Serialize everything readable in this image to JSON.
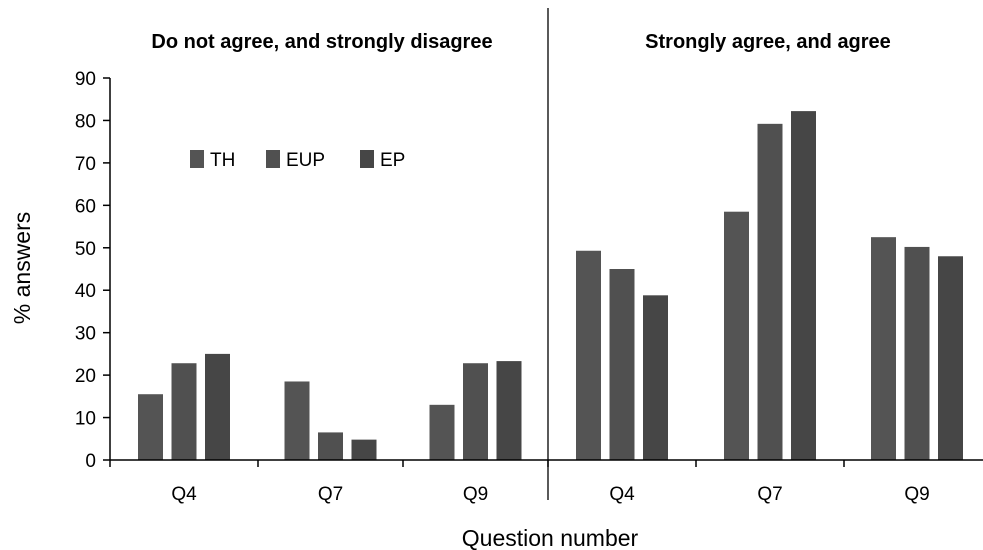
{
  "chart_data": {
    "type": "bar",
    "xlabel": "Question number",
    "ylabel": "% answers",
    "ylim": [
      0,
      90
    ],
    "yticks": [
      0,
      10,
      20,
      30,
      40,
      50,
      60,
      70,
      80,
      90
    ],
    "legend": {
      "placement": "top-left",
      "entries": [
        "TH",
        "EUP",
        "EP"
      ]
    },
    "series_names": [
      "TH",
      "EUP",
      "EP"
    ],
    "series_colors": [
      "#545454",
      "#505050",
      "#464646"
    ],
    "groups": [
      {
        "title": "Do not agree, and strongly disagree",
        "categories": [
          "Q4",
          "Q7",
          "Q9"
        ],
        "series": [
          {
            "name": "TH",
            "values": [
              15.5,
              18.5,
              13
            ]
          },
          {
            "name": "EUP",
            "values": [
              22.8,
              6.5,
              22.8
            ]
          },
          {
            "name": "EP",
            "values": [
              25,
              4.8,
              23.3
            ]
          }
        ]
      },
      {
        "title": "Strongly agree, and agree",
        "categories": [
          "Q4",
          "Q7",
          "Q9"
        ],
        "series": [
          {
            "name": "TH",
            "values": [
              49.3,
              58.5,
              52.5
            ]
          },
          {
            "name": "EUP",
            "values": [
              45,
              79.2,
              50.2
            ]
          },
          {
            "name": "EP",
            "values": [
              38.8,
              82.2,
              48
            ]
          }
        ]
      }
    ]
  }
}
